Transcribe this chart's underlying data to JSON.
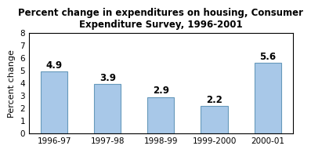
{
  "title": "Percent change in expenditures on housing, Consumer\nExpenditure Survey, 1996-2001",
  "categories": [
    "1996-97",
    "1997-98",
    "1998-99",
    "1999-2000",
    "2000-01"
  ],
  "values": [
    4.9,
    3.9,
    2.9,
    2.2,
    5.6
  ],
  "bar_color": "#a8c8e8",
  "bar_edgecolor": "#6699bb",
  "ylabel": "Percent change",
  "ylim": [
    0,
    8
  ],
  "yticks": [
    0,
    1,
    2,
    3,
    4,
    5,
    6,
    7,
    8
  ],
  "title_fontsize": 8.5,
  "label_fontsize": 8,
  "tick_fontsize": 7.5,
  "annotation_fontsize": 8.5,
  "background_color": "#ffffff"
}
